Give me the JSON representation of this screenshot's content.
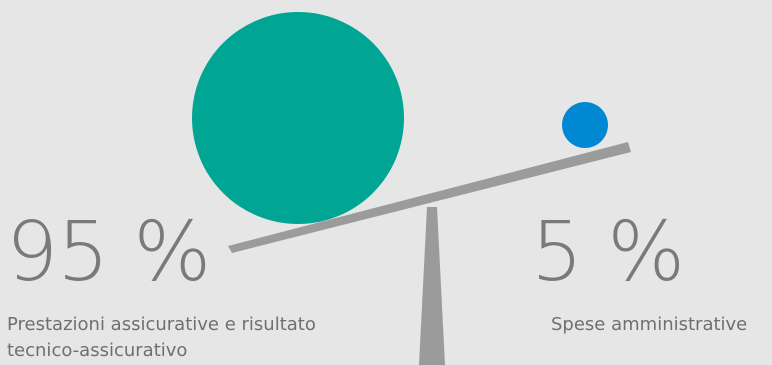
{
  "left": {
    "percent": "95 %",
    "label": "Prestazioni assicurative e risultato tecnico-assicurativo",
    "color": "#00a693",
    "share": 0.95
  },
  "right": {
    "percent": "5 %",
    "label": "Spese amministrative",
    "color": "#0089d2",
    "share": 0.05
  },
  "colors": {
    "background": "#e6e6e6",
    "beam": "#9b9b9b",
    "text": "#6f6f6f"
  }
}
